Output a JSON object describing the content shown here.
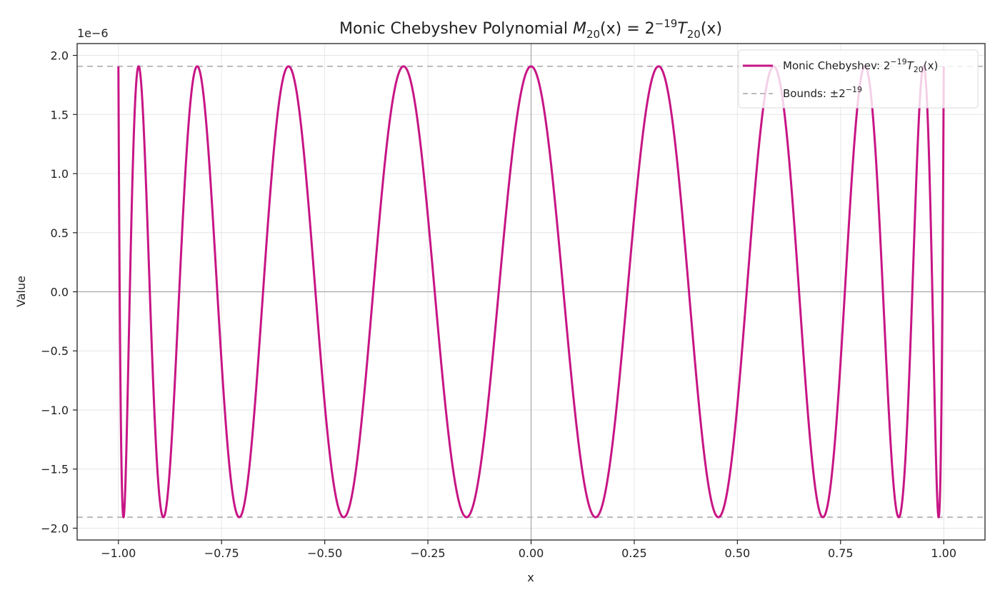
{
  "chart_data": {
    "type": "line",
    "title": "Monic Chebyshev Polynomial M_20(x) = 2^{-19} T_20(x)",
    "title_parts": {
      "prefix": "Monic Chebyshev Polynomial ",
      "M": "M",
      "sub": "20",
      "mid": "(x) = 2",
      "sup": "−19",
      "T": "T",
      "sub2": "20",
      "end": "(x)"
    },
    "xlabel": "x",
    "ylabel": "Value",
    "y_offset_label": "1e−6",
    "xlim": [
      -1.1,
      1.1
    ],
    "ylim": [
      -2.1e-06,
      2.1e-06
    ],
    "x_ticks": [
      -1.0,
      -0.75,
      -0.5,
      -0.25,
      0.0,
      0.25,
      0.5,
      0.75,
      1.0
    ],
    "x_tick_labels": [
      "−1.00",
      "−0.75",
      "−0.50",
      "−0.25",
      "0.00",
      "0.25",
      "0.50",
      "0.75",
      "1.00"
    ],
    "y_ticks": [
      2.0,
      1.5,
      1.0,
      0.5,
      0.0,
      -0.5,
      -1.0,
      -1.5,
      -2.0
    ],
    "y_tick_labels": [
      "2.0",
      "1.5",
      "1.0",
      "0.5",
      "0.0",
      "−0.5",
      "−1.0",
      "−1.5",
      "−2.0"
    ],
    "grid": true,
    "legend_position": "upper right",
    "series": [
      {
        "name": "Monic Chebyshev: 2^{-19} T_20(x)",
        "color": "#c71585",
        "style": "solid",
        "function": "2^-19 * cos(20*acos(x))",
        "x_range": [
          -1,
          1
        ],
        "degree": 20,
        "amplitude": 1.9073486328125e-06
      },
      {
        "name": "Bounds: ±2^{-19}",
        "color": "#bbbbbb",
        "style": "dashed",
        "values": [
          1.9073486328125e-06,
          -1.9073486328125e-06
        ]
      }
    ],
    "reference_lines": {
      "x": 0,
      "y": 0,
      "color": "#999999"
    }
  },
  "legend": {
    "series1": {
      "prefix": "Monic Chebyshev: 2",
      "sup": "−19",
      "T": "T",
      "sub": "20",
      "end": "(x)"
    },
    "series2": {
      "prefix": "Bounds: ±2",
      "sup": "−19"
    }
  },
  "colors": {
    "curve": "#c71585",
    "bounds": "#bbbbbb",
    "grid": "#e6e6e6",
    "axis": "#222222"
  }
}
